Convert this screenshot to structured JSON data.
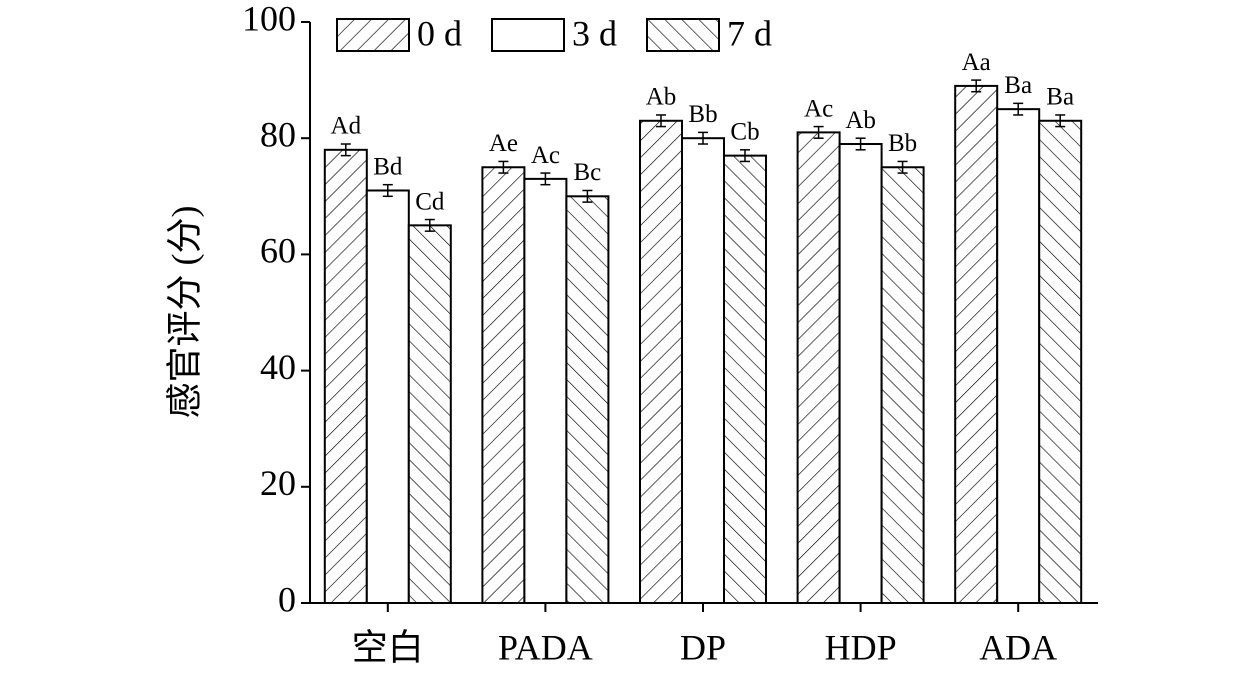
{
  "chart_data": {
    "type": "bar",
    "y_label": "感官评分 (分)",
    "categories": [
      "空白",
      "PADA",
      "DP",
      "HDP",
      "ADA"
    ],
    "series": [
      {
        "name": "0 d",
        "color": "#000000",
        "hatch": "/",
        "values": [
          78,
          75,
          83,
          81,
          89
        ],
        "errors": [
          1,
          1,
          1,
          1,
          1
        ],
        "letters": [
          "Ad",
          "Ae",
          "Ab",
          "Ac",
          "Aa"
        ]
      },
      {
        "name": "3 d",
        "color": "#000000",
        "hatch": "none",
        "values": [
          71,
          73,
          80,
          79,
          85
        ],
        "errors": [
          1,
          1,
          1,
          1,
          1
        ],
        "letters": [
          "Bd",
          "Ac",
          "Bb",
          "Ab",
          "Ba"
        ]
      },
      {
        "name": "7 d",
        "color": "#000000",
        "hatch": "\\",
        "values": [
          65,
          70,
          77,
          75,
          83
        ],
        "errors": [
          1,
          1,
          1,
          1,
          1
        ],
        "letters": [
          "Cd",
          "Bc",
          "Cb",
          "Bb",
          "Ba"
        ]
      }
    ],
    "ylim": [
      0,
      100
    ],
    "yticks": [
      0,
      20,
      40,
      60,
      80,
      100
    ],
    "legend": "top"
  }
}
